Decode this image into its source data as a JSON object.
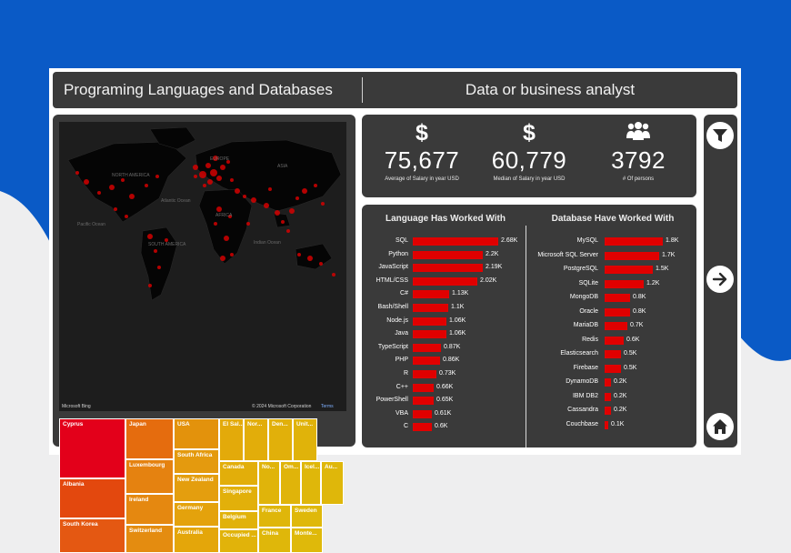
{
  "theme": {
    "brand_blue": "#0a5ac6",
    "panel": "#3a3a3a",
    "bar_red": "#e00000"
  },
  "header": {
    "title": "Programing Languages and Databases",
    "role": "Data or business analyst"
  },
  "map": {
    "labels": [
      "NORTH AMERICA",
      "EUROPE",
      "ASIA",
      "AFRICA",
      "SOUTH AMERICA",
      "Atlantic Ocean",
      "Indian Ocean",
      "Pacific Ocean"
    ],
    "logo": "Microsoft Bing",
    "copyright": "© 2024 Microsoft Corporation",
    "terms": "Terms"
  },
  "treemap": [
    {
      "name": "Cyprus",
      "color": "#e3001a"
    },
    {
      "name": "Albania",
      "color": "#e3480e"
    },
    {
      "name": "South Korea",
      "color": "#e45812"
    },
    {
      "name": "Japan",
      "color": "#e56c0e"
    },
    {
      "name": "Luxembourg",
      "color": "#e58210"
    },
    {
      "name": "Ireland",
      "color": "#e58810"
    },
    {
      "name": "Switzerland",
      "color": "#e48c10"
    },
    {
      "name": "USA",
      "color": "#e3920c"
    },
    {
      "name": "South Africa",
      "color": "#e49a0e"
    },
    {
      "name": "New Zealand",
      "color": "#e49e0e"
    },
    {
      "name": "Germany",
      "color": "#e4a20c"
    },
    {
      "name": "Australia",
      "color": "#e4a60a"
    },
    {
      "name": "El Sal...",
      "color": "#e3aa0a"
    },
    {
      "name": "Nor...",
      "color": "#e2ad0a"
    },
    {
      "name": "Den...",
      "color": "#e1b00a"
    },
    {
      "name": "Unit...",
      "color": "#e0b30a"
    },
    {
      "name": "Canada",
      "color": "#e2ae0a"
    },
    {
      "name": "Singapore",
      "color": "#e2b00a"
    },
    {
      "name": "Belgium",
      "color": "#e1b20a"
    },
    {
      "name": "Occupied ...",
      "color": "#e1b30a"
    },
    {
      "name": "No...",
      "color": "#e0b40a"
    },
    {
      "name": "Om...",
      "color": "#e0b40a"
    },
    {
      "name": "Icel...",
      "color": "#dfb70a"
    },
    {
      "name": "Au...",
      "color": "#dfb70a"
    },
    {
      "name": "France",
      "color": "#dfb60a"
    },
    {
      "name": "Sweden",
      "color": "#dfb80a"
    },
    {
      "name": "China",
      "color": "#dfb70a"
    },
    {
      "name": "Monte...",
      "color": "#dfb90a"
    }
  ],
  "kpis": [
    {
      "icon": "dollar-icon",
      "symbol": "$",
      "value": "75,677",
      "label": "Average of Salary in year USD"
    },
    {
      "icon": "dollar-icon",
      "symbol": "$",
      "value": "60,779",
      "label": "Median of Salary in year USD"
    },
    {
      "icon": "people-icon",
      "symbol": "",
      "value": "3792",
      "label": "# Of persons"
    }
  ],
  "chart_data": [
    {
      "type": "bar",
      "title": "Language Has Worked With",
      "categories": [
        "SQL",
        "Python",
        "JavaScript",
        "HTML/CSS",
        "C#",
        "Bash/Shell",
        "Node.js",
        "Java",
        "TypeScript",
        "PHP",
        "R",
        "C++",
        "PowerShell",
        "VBA",
        "C"
      ],
      "values": [
        2680,
        2200,
        2190,
        2020,
        1130,
        1100,
        1060,
        1060,
        870,
        860,
        730,
        660,
        650,
        610,
        600
      ],
      "labels": [
        "2.68K",
        "2.2K",
        "2.19K",
        "2.02K",
        "1.13K",
        "1.1K",
        "1.06K",
        "1.06K",
        "0.87K",
        "0.86K",
        "0.73K",
        "0.66K",
        "0.65K",
        "0.61K",
        "0.6K"
      ],
      "max": 2680
    },
    {
      "type": "bar",
      "title": "Database Have Worked With",
      "categories": [
        "MySQL",
        "Microsoft SQL Server",
        "PostgreSQL",
        "SQLite",
        "MongoDB",
        "Oracle",
        "MariaDB",
        "Redis",
        "Elasticsearch",
        "Firebase",
        "DynamoDB",
        "IBM DB2",
        "Cassandra",
        "Couchbase"
      ],
      "values": [
        1800,
        1700,
        1500,
        1200,
        800,
        800,
        700,
        600,
        500,
        500,
        200,
        200,
        200,
        100
      ],
      "labels": [
        "1.8K",
        "1.7K",
        "1.5K",
        "1.2K",
        "0.8K",
        "0.8K",
        "0.7K",
        "0.6K",
        "0.5K",
        "0.5K",
        "0.2K",
        "0.2K",
        "0.2K",
        "0.1K"
      ],
      "max": 1800
    }
  ],
  "nav": {
    "buttons": [
      {
        "name": "filter-button",
        "icon": "filter-icon"
      },
      {
        "name": "next-page-button",
        "icon": "arrow-right-icon"
      },
      {
        "name": "home-button",
        "icon": "home-icon"
      }
    ]
  }
}
